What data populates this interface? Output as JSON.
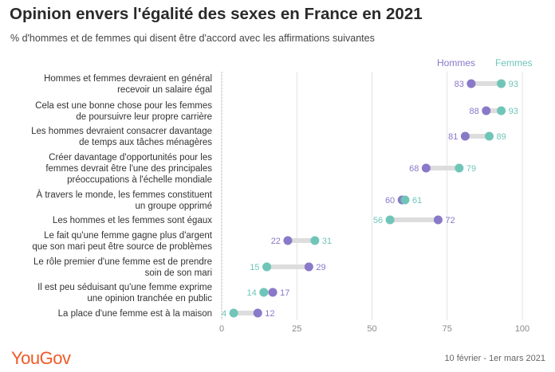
{
  "title": "Opinion envers l'égalité des sexes en France en 2021",
  "subtitle": "% d'hommes et de femmes qui disent être d'accord avec les affirmations suivantes",
  "brand": "YouGov",
  "date_range": "10 février - 1er mars 2021",
  "colors": {
    "hommes": "#8a78c9",
    "femmes": "#6fc5b8",
    "connector": "#dddddd",
    "brand": "#f05a28"
  },
  "chart_data": {
    "type": "dumbbell",
    "xlim": [
      0,
      100
    ],
    "xticks": [
      0,
      25,
      50,
      75,
      100
    ],
    "grid": true,
    "legend_placement": "top-right",
    "series": [
      {
        "name": "Hommes",
        "color": "#8a78c9"
      },
      {
        "name": "Femmes",
        "color": "#6fc5b8"
      }
    ],
    "rows": [
      {
        "label": [
          "Hommes et femmes devraient en général",
          "recevoir un salaire égal"
        ],
        "hommes": 83,
        "femmes": 93
      },
      {
        "label": [
          "Cela est une bonne chose pour les femmes",
          "de poursuivre leur propre carrière"
        ],
        "hommes": 88,
        "femmes": 93
      },
      {
        "label": [
          "Les hommes devraient consacrer davantage",
          "de temps aux tâches ménagères"
        ],
        "hommes": 81,
        "femmes": 89
      },
      {
        "label": [
          "Créer davantage d'opportunités pour les",
          "femmes devrait être l'une des principales",
          "préoccupations à l'échelle mondiale"
        ],
        "hommes": 68,
        "femmes": 79
      },
      {
        "label": [
          "À travers le monde, les femmes constituent",
          "un groupe opprimé"
        ],
        "hommes": 60,
        "femmes": 61
      },
      {
        "label": [
          "Les hommes et les femmes sont égaux"
        ],
        "hommes": 72,
        "femmes": 56
      },
      {
        "label": [
          "Le fait qu'une femme gagne plus d'argent",
          "que son mari peut être source de problèmes"
        ],
        "hommes": 22,
        "femmes": 31
      },
      {
        "label": [
          "Le rôle premier d'une femme est de prendre",
          "soin de son mari"
        ],
        "hommes": 29,
        "femmes": 15
      },
      {
        "label": [
          "Il est peu séduisant qu'une femme exprime",
          "une opinion tranchée en public"
        ],
        "hommes": 17,
        "femmes": 14
      },
      {
        "label": [
          "La place d'une femme est à la maison"
        ],
        "hommes": 12,
        "femmes": 4
      }
    ]
  }
}
